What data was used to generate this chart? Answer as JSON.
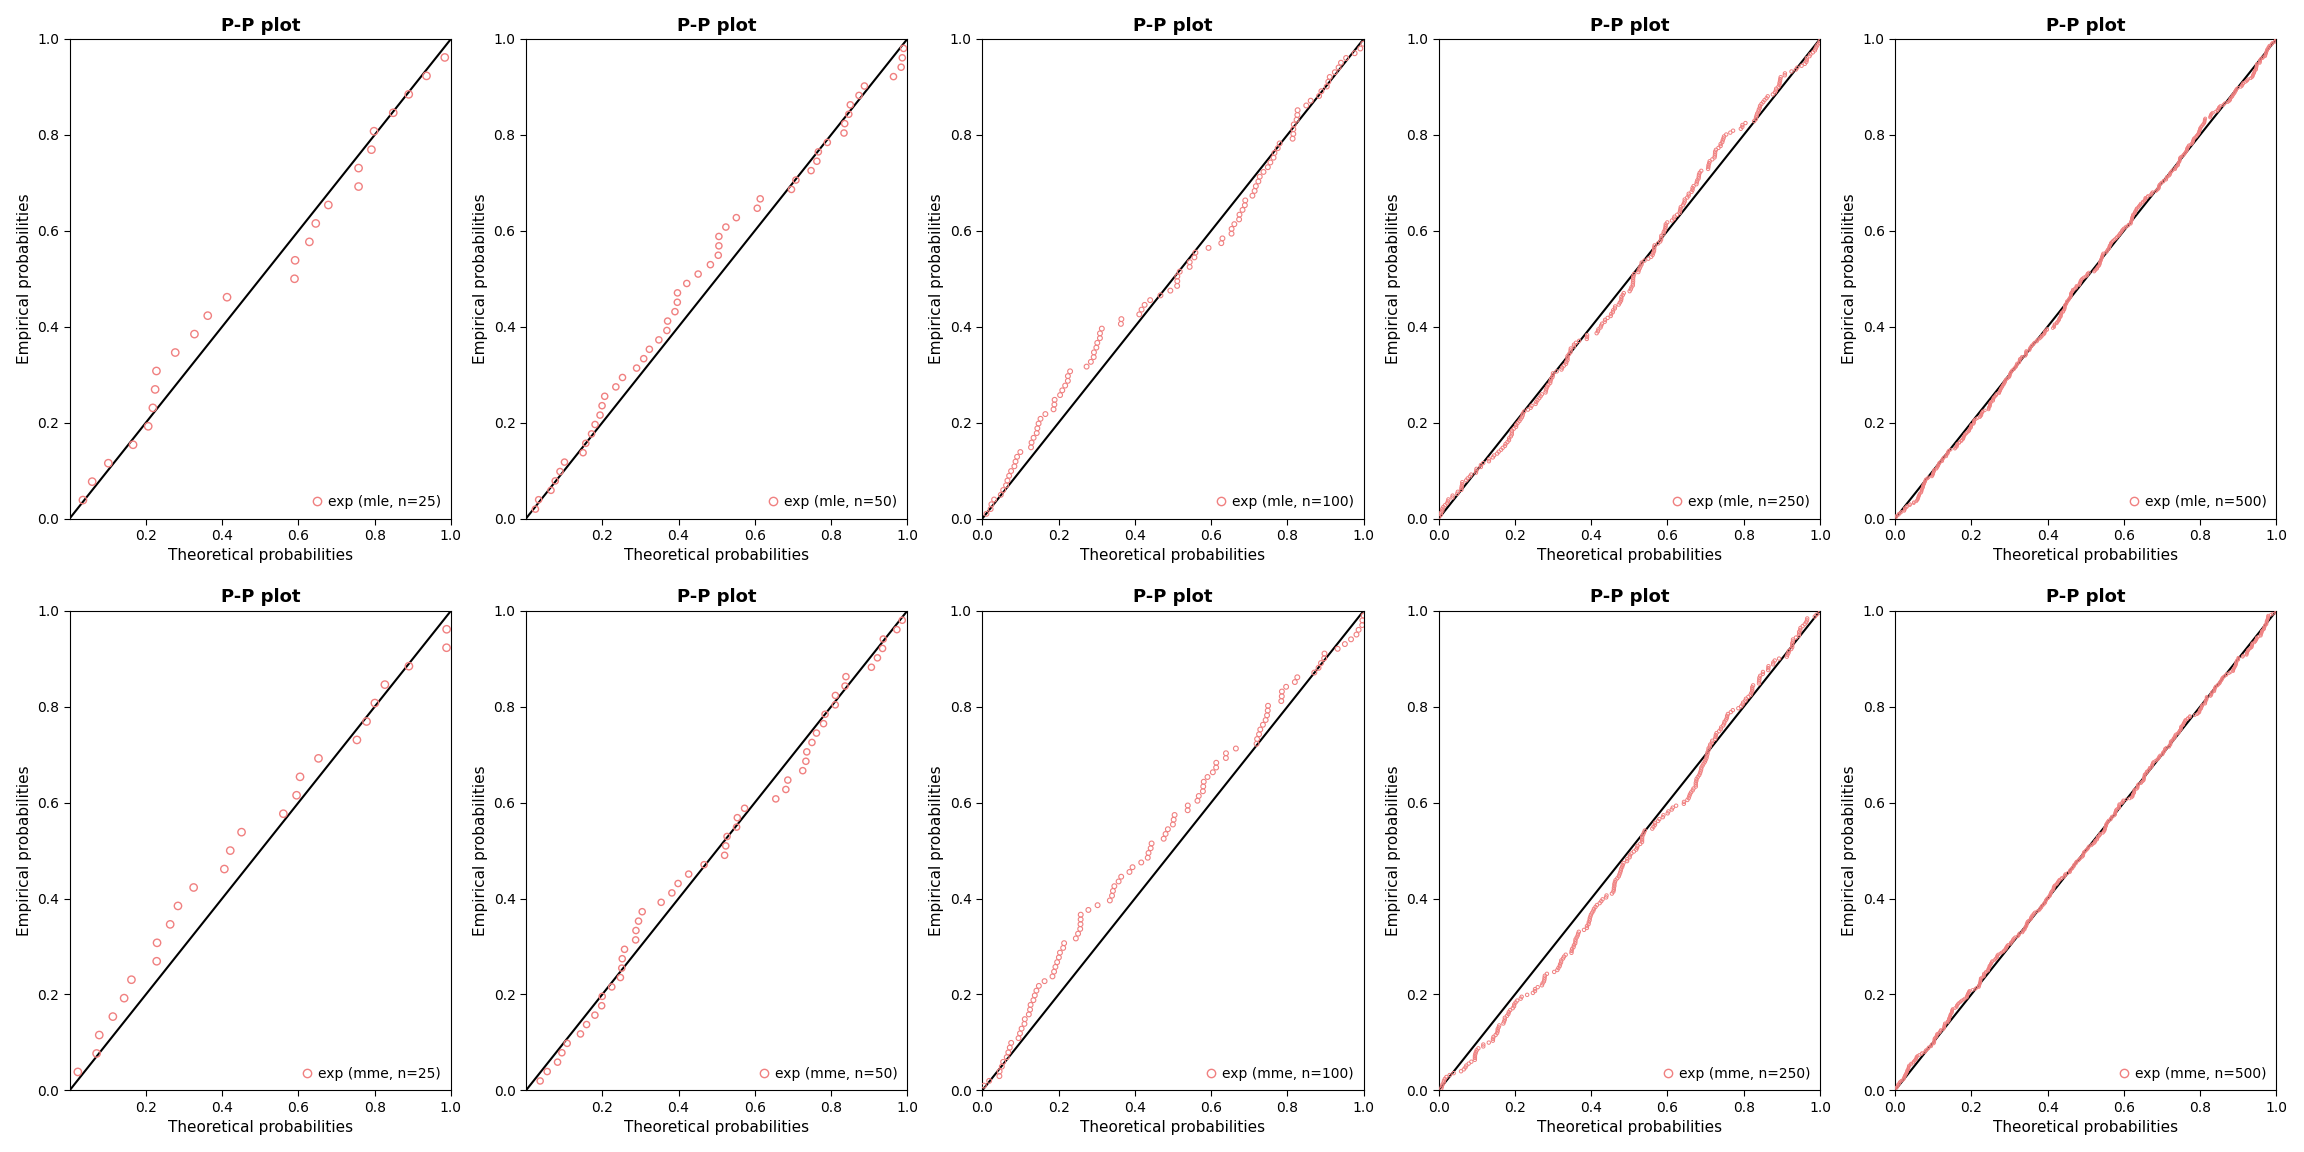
{
  "title": "P-P plot",
  "xlabel": "Theoretical probabilities",
  "ylabel": "Empirical probabilities",
  "row_labels": [
    "mle",
    "mme"
  ],
  "sample_sizes": [
    25,
    50,
    100,
    250,
    500
  ],
  "legend_template_mle": "exp (mle, n={n})",
  "legend_template_mme": "exp (mme, n={n})",
  "dot_color": "#F08080",
  "line_color": "#000000",
  "background_color": "#ffffff",
  "title_fontsize": 13,
  "axis_label_fontsize": 11,
  "tick_fontsize": 10,
  "legend_fontsize": 10,
  "xticks_small": [
    0.2,
    0.4,
    0.6,
    0.8,
    1.0
  ],
  "xticks_large": [
    0.0,
    0.2,
    0.4,
    0.6,
    0.8,
    1.0
  ],
  "yticks": [
    0.0,
    0.2,
    0.4,
    0.6,
    0.8,
    1.0
  ]
}
